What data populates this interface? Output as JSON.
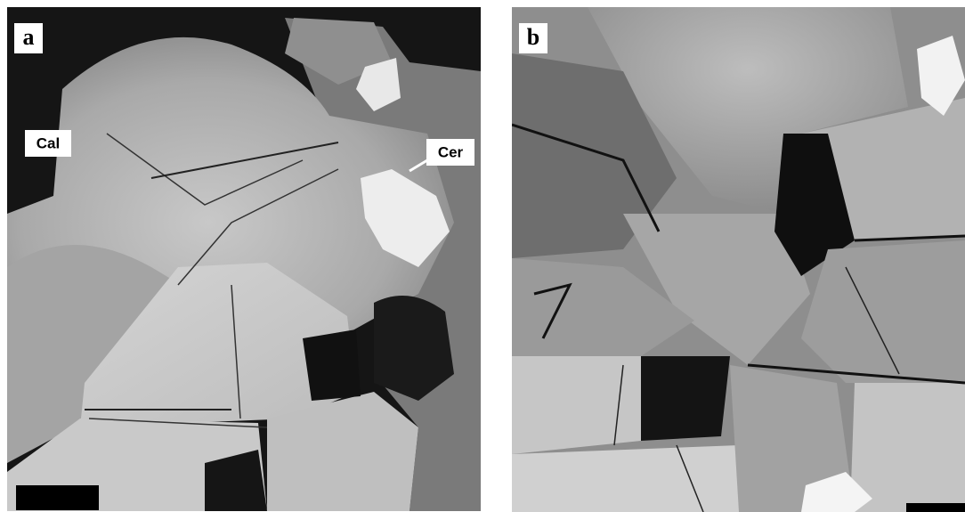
{
  "panels": [
    {
      "label": "a",
      "annotations": [
        "Cal",
        "Cer"
      ]
    },
    {
      "label": "b"
    }
  ]
}
